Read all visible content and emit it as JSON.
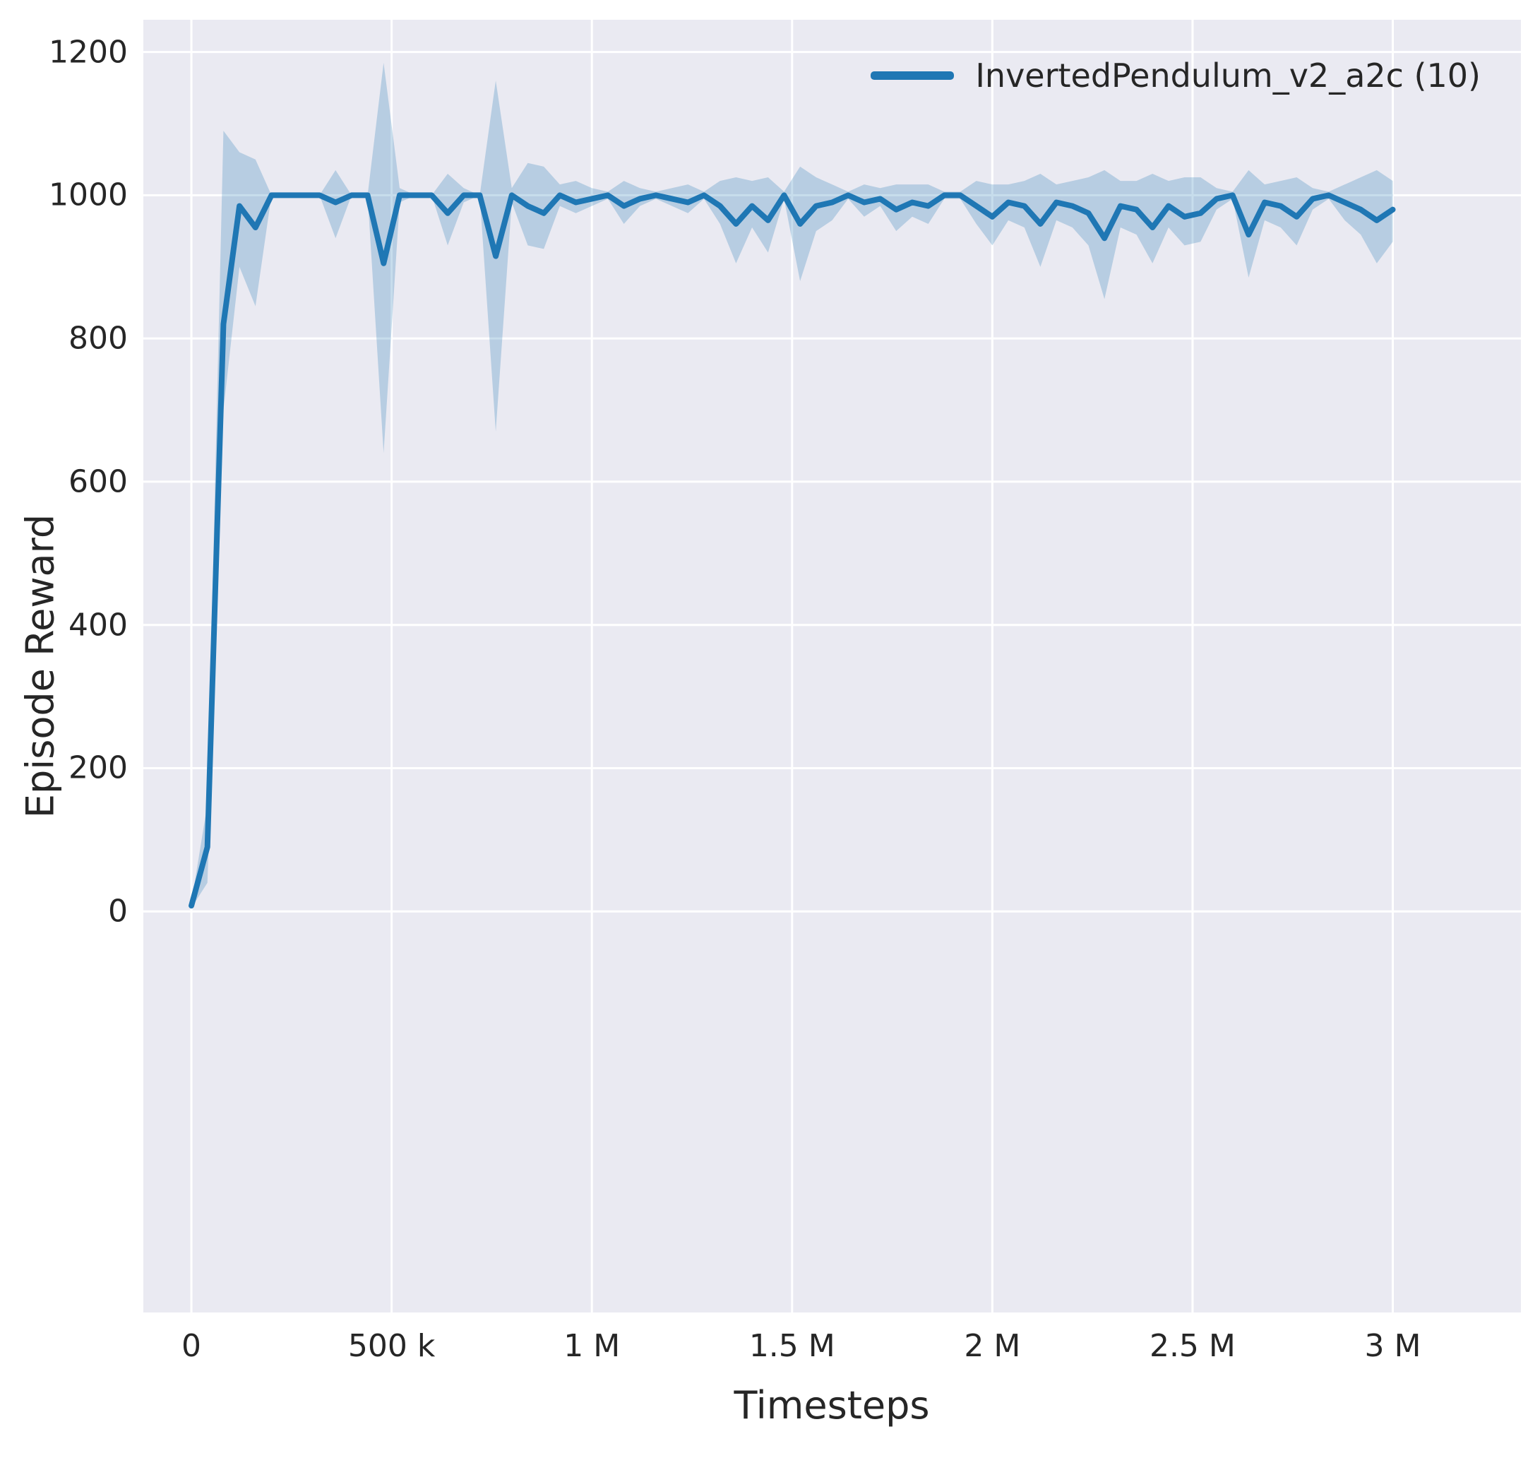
{
  "figure": {
    "background": "#ffffff",
    "axes_background": "#eaeaf2",
    "grid_color": "#ffffff",
    "text_color": "#262626"
  },
  "legend": {
    "label": "InvertedPendulum_v2_a2c (10)",
    "line_color": "#1f77b4"
  },
  "chart_data": {
    "type": "line",
    "title": "",
    "xlabel": "Timesteps",
    "ylabel": "Episode Reward",
    "legend_position": "upper right",
    "grid": true,
    "xlim": [
      -120000,
      3320000
    ],
    "ylim": [
      -560,
      1245
    ],
    "x_ticks": [
      {
        "value": 0,
        "label": "0"
      },
      {
        "value": 500000,
        "label": "500 k"
      },
      {
        "value": 1000000,
        "label": "1 M"
      },
      {
        "value": 1500000,
        "label": "1.5 M"
      },
      {
        "value": 2000000,
        "label": "2 M"
      },
      {
        "value": 2500000,
        "label": "2.5 M"
      },
      {
        "value": 3000000,
        "label": "3 M"
      }
    ],
    "y_ticks": [
      {
        "value": 0,
        "label": "0"
      },
      {
        "value": 200,
        "label": "200"
      },
      {
        "value": 400,
        "label": "400"
      },
      {
        "value": 600,
        "label": "600"
      },
      {
        "value": 800,
        "label": "800"
      },
      {
        "value": 1000,
        "label": "1000"
      },
      {
        "value": 1200,
        "label": "1200"
      }
    ],
    "series": [
      {
        "name": "InvertedPendulum_v2_a2c (10)",
        "color": "#1f77b4",
        "band_opacity": 0.25,
        "x": [
          0,
          40000,
          80000,
          120000,
          160000,
          200000,
          240000,
          280000,
          320000,
          360000,
          400000,
          440000,
          480000,
          520000,
          560000,
          600000,
          640000,
          680000,
          720000,
          760000,
          800000,
          840000,
          880000,
          920000,
          960000,
          1000000,
          1040000,
          1080000,
          1120000,
          1160000,
          1200000,
          1240000,
          1280000,
          1320000,
          1360000,
          1400000,
          1440000,
          1480000,
          1520000,
          1560000,
          1600000,
          1640000,
          1680000,
          1720000,
          1760000,
          1800000,
          1840000,
          1880000,
          1920000,
          1960000,
          2000000,
          2040000,
          2080000,
          2120000,
          2160000,
          2200000,
          2240000,
          2280000,
          2320000,
          2360000,
          2400000,
          2440000,
          2480000,
          2520000,
          2560000,
          2600000,
          2640000,
          2680000,
          2720000,
          2760000,
          2800000,
          2840000,
          2880000,
          2920000,
          2960000,
          3000000
        ],
        "mean": [
          8,
          90,
          820,
          985,
          955,
          1000,
          1000,
          1000,
          1000,
          990,
          1000,
          1000,
          905,
          1000,
          1000,
          1000,
          975,
          1000,
          1000,
          915,
          1000,
          985,
          975,
          1000,
          990,
          995,
          1000,
          985,
          995,
          1000,
          995,
          990,
          1000,
          985,
          960,
          985,
          965,
          1000,
          960,
          985,
          990,
          1000,
          990,
          995,
          980,
          990,
          985,
          1000,
          1000,
          985,
          970,
          990,
          985,
          960,
          990,
          985,
          975,
          940,
          985,
          980,
          955,
          985,
          970,
          975,
          995,
          1000,
          945,
          990,
          985,
          970,
          995,
          1000,
          990,
          980,
          965,
          980
        ],
        "band_low": [
          5,
          40,
          700,
          900,
          845,
          1000,
          1000,
          1000,
          1000,
          940,
          1000,
          1000,
          640,
          990,
          1000,
          1000,
          930,
          990,
          1000,
          670,
          990,
          930,
          925,
          985,
          975,
          985,
          995,
          960,
          985,
          995,
          985,
          975,
          995,
          960,
          905,
          955,
          920,
          995,
          880,
          950,
          965,
          995,
          970,
          985,
          950,
          970,
          960,
          995,
          995,
          960,
          930,
          965,
          955,
          900,
          965,
          955,
          930,
          855,
          955,
          945,
          905,
          955,
          930,
          935,
          980,
          995,
          885,
          965,
          955,
          930,
          980,
          995,
          965,
          945,
          905,
          935
        ],
        "band_high": [
          12,
          150,
          1090,
          1060,
          1050,
          1000,
          1000,
          1000,
          1000,
          1035,
          1000,
          1000,
          1185,
          1010,
          1000,
          1000,
          1030,
          1010,
          1000,
          1160,
          1010,
          1045,
          1040,
          1015,
          1020,
          1010,
          1005,
          1020,
          1010,
          1005,
          1010,
          1015,
          1005,
          1020,
          1025,
          1020,
          1025,
          1005,
          1040,
          1025,
          1015,
          1005,
          1015,
          1010,
          1015,
          1015,
          1015,
          1005,
          1005,
          1020,
          1015,
          1015,
          1020,
          1030,
          1015,
          1020,
          1025,
          1035,
          1020,
          1020,
          1030,
          1020,
          1025,
          1025,
          1010,
          1005,
          1035,
          1015,
          1020,
          1025,
          1010,
          1005,
          1015,
          1025,
          1035,
          1020
        ]
      }
    ]
  }
}
